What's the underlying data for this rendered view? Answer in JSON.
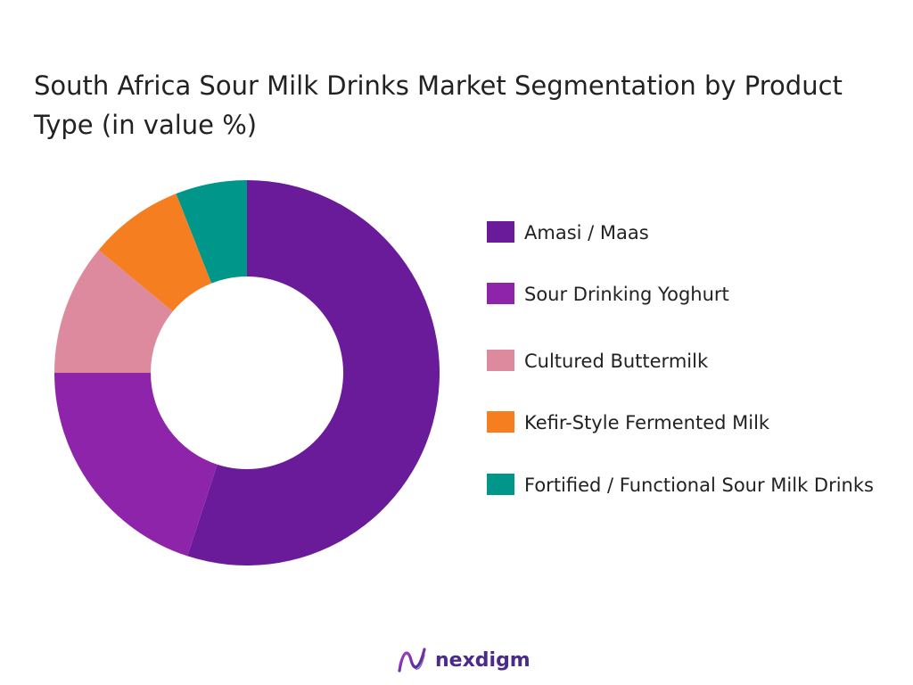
{
  "title": "South Africa Sour Milk Drinks Market Segmentation by Product Type (in value %)",
  "chart_data": {
    "type": "pie",
    "donut": true,
    "categories": [
      "Amasi / Maas",
      "Sour Drinking Yoghurt",
      "Cultured Buttermilk",
      "Kefir-Style Fermented Milk",
      "Fortified / Functional Sour Milk Drinks"
    ],
    "values": [
      55,
      20,
      11,
      8,
      6
    ],
    "colors": [
      "#6a1b9a",
      "#8e24aa",
      "#de8a9e",
      "#f57f20",
      "#00978a"
    ],
    "legend_position": "right"
  },
  "logo": {
    "text": "nexdigm",
    "color": "#4b2a8a"
  }
}
